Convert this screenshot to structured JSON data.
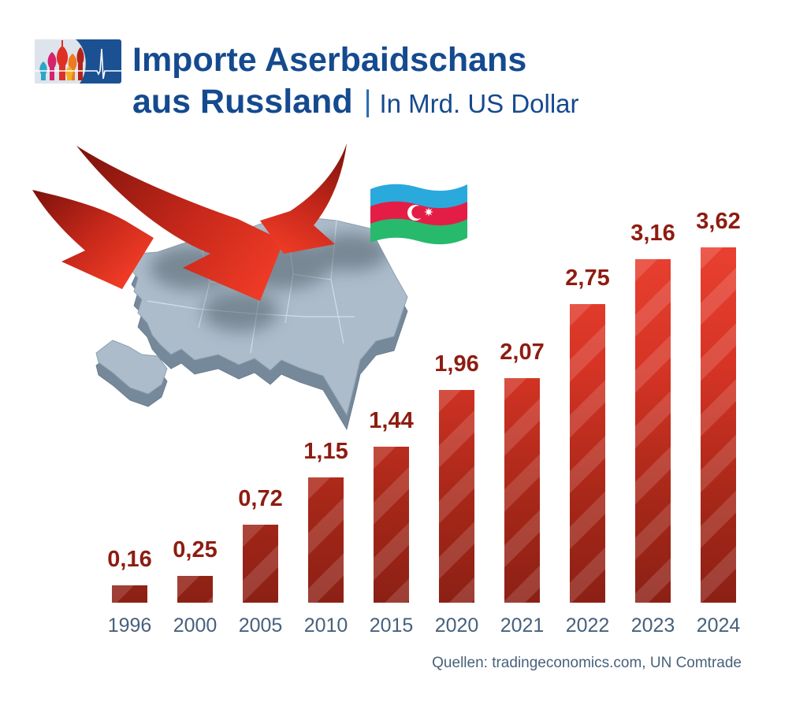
{
  "header": {
    "title_line1": "Importe Aserbaidschans",
    "title_line2": "aus Russland",
    "separator": "|",
    "subtitle": "In Mrd. US Dollar",
    "title_color": "#154a8f",
    "logo": {
      "description": "cathedral-and-pulse-logo",
      "panel_light": "#dde4ec",
      "panel_dark": "#1b5193",
      "dome_colors": [
        "#2ba6c9",
        "#d6246c",
        "#e03025",
        "#f2b01e",
        "#ee7b23",
        "#b22318"
      ]
    }
  },
  "illustration": {
    "map": "azerbaijan-3d-map",
    "map_top_color": "#adbccb",
    "map_side_color": "#76899a",
    "arrow_color_dark": "#7a120b",
    "arrow_color_bright": "#ef3b26",
    "flag": "azerbaijan-flag",
    "flag_blue": "#2aa9dd",
    "flag_red": "#e41d47",
    "flag_green": "#27b96c"
  },
  "chart_data": {
    "type": "bar",
    "title": "Importe Aserbaidschans aus Russland",
    "unit": "Mrd. US Dollar",
    "categories": [
      "1996",
      "2000",
      "2005",
      "2010",
      "2015",
      "2020",
      "2021",
      "2022",
      "2023",
      "2024"
    ],
    "values": [
      0.16,
      0.25,
      0.72,
      1.15,
      1.44,
      1.96,
      2.07,
      2.75,
      3.16,
      3.62
    ],
    "value_labels": [
      "0,16",
      "0,25",
      "0,72",
      "1,15",
      "1,44",
      "1,96",
      "2,07",
      "2,75",
      "3,16",
      "3,62"
    ],
    "xlabel": "",
    "ylabel": "Mrd. US Dollar",
    "ylim": [
      0,
      3.7
    ],
    "grid": false,
    "legend": false,
    "bar_color_top": "#e8392b",
    "bar_color_bottom": "#8c2015",
    "value_label_color": "#8e1c11",
    "axis_label_color": "#47617c"
  },
  "footer": {
    "source": "Quellen: tradingeconomics.com, UN Comtrade"
  }
}
